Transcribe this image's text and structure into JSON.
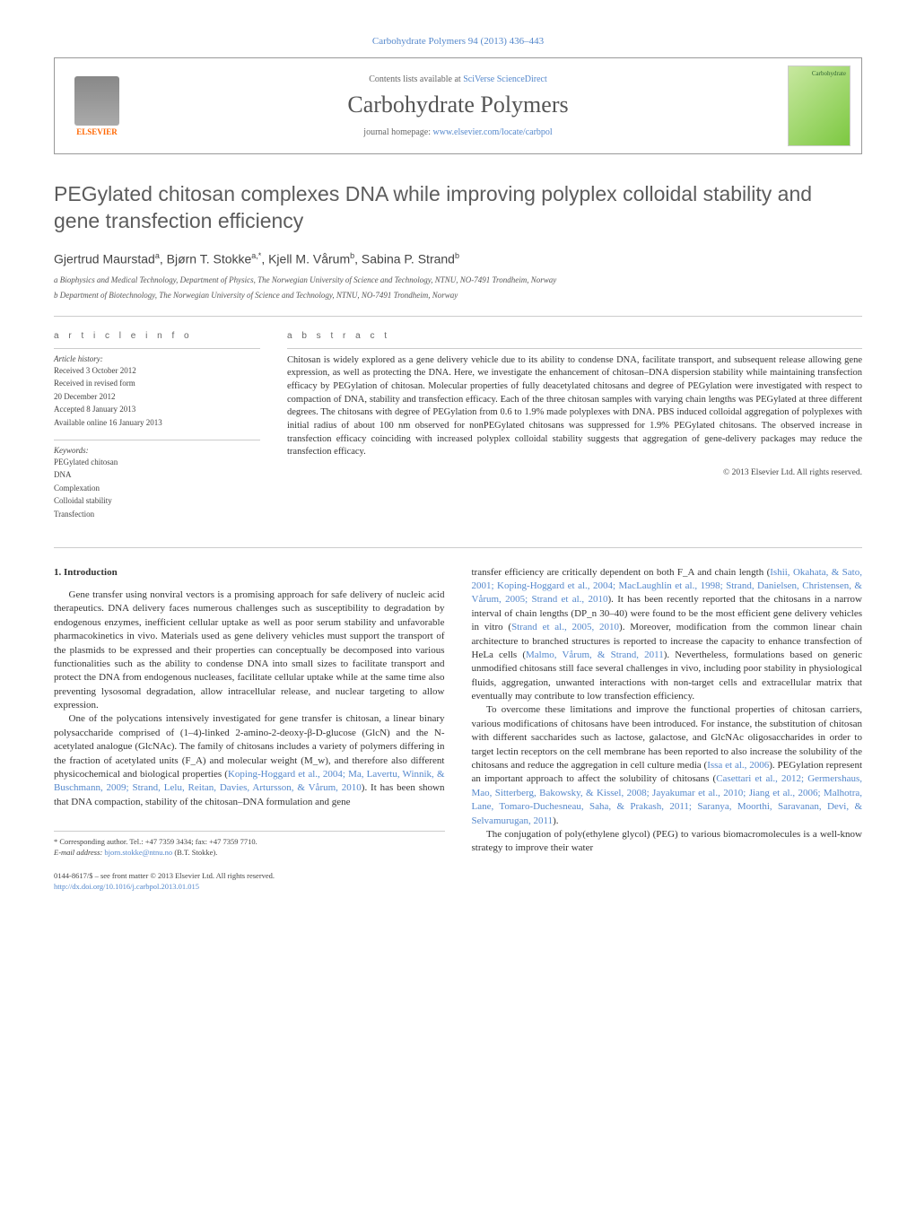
{
  "journal_ref": "Carbohydrate Polymers 94 (2013) 436–443",
  "header": {
    "contents_prefix": "Contents lists available at ",
    "contents_link": "SciVerse ScienceDirect",
    "journal_name": "Carbohydrate Polymers",
    "homepage_prefix": "journal homepage: ",
    "homepage_url": "www.elsevier.com/locate/carbpol",
    "publisher_label": "ELSEVIER",
    "cover_label": "Carbohydrate"
  },
  "title": "PEGylated chitosan complexes DNA while improving polyplex colloidal stability and gene transfection efficiency",
  "authors_html": "Gjertrud Maurstad<sup>a</sup>, Bjørn T. Stokke<sup>a,*</sup>, Kjell M. Vårum<sup>b</sup>, Sabina P. Strand<sup>b</sup>",
  "affiliations": [
    "a Biophysics and Medical Technology, Department of Physics, The Norwegian University of Science and Technology, NTNU, NO-7491 Trondheim, Norway",
    "b Department of Biotechnology, The Norwegian University of Science and Technology, NTNU, NO-7491 Trondheim, Norway"
  ],
  "article_info": {
    "heading": "a r t i c l e   i n f o",
    "history_head": "Article history:",
    "history": [
      "Received 3 October 2012",
      "Received in revised form",
      "20 December 2012",
      "Accepted 8 January 2013",
      "Available online 16 January 2013"
    ],
    "keywords_head": "Keywords:",
    "keywords": [
      "PEGylated chitosan",
      "DNA",
      "Complexation",
      "Colloidal stability",
      "Transfection"
    ]
  },
  "abstract": {
    "heading": "a b s t r a c t",
    "text": "Chitosan is widely explored as a gene delivery vehicle due to its ability to condense DNA, facilitate transport, and subsequent release allowing gene expression, as well as protecting the DNA. Here, we investigate the enhancement of chitosan–DNA dispersion stability while maintaining transfection efficacy by PEGylation of chitosan. Molecular properties of fully deacetylated chitosans and degree of PEGylation were investigated with respect to compaction of DNA, stability and transfection efficacy. Each of the three chitosan samples with varying chain lengths was PEGylated at three different degrees. The chitosans with degree of PEGylation from 0.6 to 1.9% made polyplexes with DNA. PBS induced colloidal aggregation of polyplexes with initial radius of about 100 nm observed for nonPEGylated chitosans was suppressed for 1.9% PEGylated chitosans. The observed increase in transfection efficacy coinciding with increased polyplex colloidal stability suggests that aggregation of gene-delivery packages may reduce the transfection efficacy.",
    "copyright": "© 2013 Elsevier Ltd. All rights reserved."
  },
  "body": {
    "section_heading": "1. Introduction",
    "col1_paras": [
      "Gene transfer using nonviral vectors is a promising approach for safe delivery of nucleic acid therapeutics. DNA delivery faces numerous challenges such as susceptibility to degradation by endogenous enzymes, inefficient cellular uptake as well as poor serum stability and unfavorable pharmacokinetics in vivo. Materials used as gene delivery vehicles must support the transport of the plasmids to be expressed and their properties can conceptually be decomposed into various functionalities such as the ability to condense DNA into small sizes to facilitate transport and protect the DNA from endogenous nucleases, facilitate cellular uptake while at the same time also preventing lysosomal degradation, allow intracellular release, and nuclear targeting to allow expression.",
      "One of the polycations intensively investigated for gene transfer is chitosan, a linear binary polysaccharide comprised of (1–4)-linked 2-amino-2-deoxy-β-D-glucose (GlcN) and the N-acetylated analogue (GlcNAc). The family of chitosans includes a variety of polymers differing in the fraction of acetylated units (F_A) and molecular weight (M_w), and therefore also different physicochemical and biological properties (Koping-Hoggard et al., 2004; Ma, Lavertu, Winnik, & Buschmann, 2009; Strand, Lelu, Reitan, Davies, Artursson, & Vårum, 2010). It has been shown that DNA compaction, stability of the chitosan–DNA formulation and gene"
    ],
    "col2_paras": [
      "transfer efficiency are critically dependent on both F_A and chain length (Ishii, Okahata, & Sato, 2001; Koping-Hoggard et al., 2004; MacLaughlin et al., 1998; Strand, Danielsen, Christensen, & Vårum, 2005; Strand et al., 2010). It has been recently reported that the chitosans in a narrow interval of chain lengths (DP_n 30–40) were found to be the most efficient gene delivery vehicles in vitro (Strand et al., 2005, 2010). Moreover, modification from the common linear chain architecture to branched structures is reported to increase the capacity to enhance transfection of HeLa cells (Malmo, Vårum, & Strand, 2011). Nevertheless, formulations based on generic unmodified chitosans still face several challenges in vivo, including poor stability in physiological fluids, aggregation, unwanted interactions with non-target cells and extracellular matrix that eventually may contribute to low transfection efficiency.",
      "To overcome these limitations and improve the functional properties of chitosan carriers, various modifications of chitosans have been introduced. For instance, the substitution of chitosan with different saccharides such as lactose, galactose, and GlcNAc oligosaccharides in order to target lectin receptors on the cell membrane has been reported to also increase the solubility of the chitosans and reduce the aggregation in cell culture media (Issa et al., 2006). PEGylation represent an important approach to affect the solubility of chitosans (Casettari et al., 2012; Germershaus, Mao, Sitterberg, Bakowsky, & Kissel, 2008; Jayakumar et al., 2010; Jiang et al., 2006; Malhotra, Lane, Tomaro-Duchesneau, Saha, & Prakash, 2011; Saranya, Moorthi, Saravanan, Devi, & Selvamurugan, 2011).",
      "The conjugation of poly(ethylene glycol) (PEG) to various biomacromolecules is a well-know strategy to improve their water"
    ]
  },
  "footer": {
    "corr_label": "* Corresponding author. Tel.: +47 7359 3434; fax: +47 7359 7710.",
    "email_label": "E-mail address: ",
    "email": "bjorn.stokke@ntnu.no",
    "email_suffix": " (B.T. Stokke).",
    "rights_line1": "0144-8617/$ – see front matter © 2013 Elsevier Ltd. All rights reserved.",
    "doi": "http://dx.doi.org/10.1016/j.carbpol.2013.01.015"
  },
  "colors": {
    "link": "#5588cc",
    "text": "#333333",
    "heading_gray": "#5c5c5c",
    "orange": "#ff6600"
  }
}
